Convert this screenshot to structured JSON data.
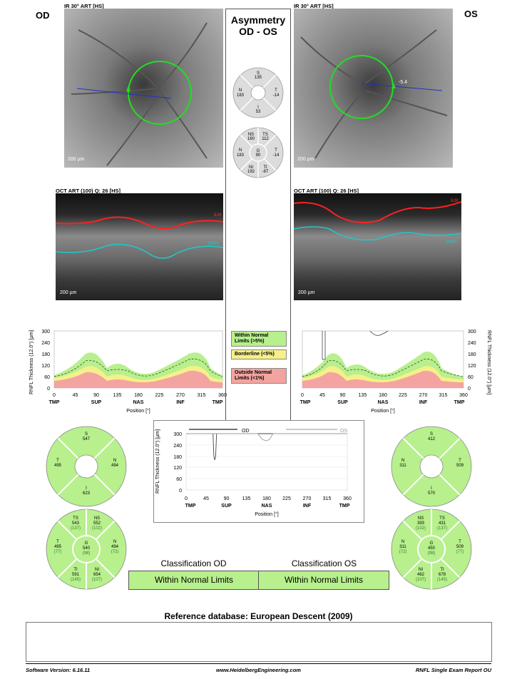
{
  "eyes": {
    "od": "OD",
    "os": "OS"
  },
  "images": {
    "od_ir_label": "IR 30° ART [HS]",
    "os_ir_label": "IR 30° ART [HS]",
    "od_oct_label": "OCT ART (100) Q: 26 [HS]",
    "os_oct_label": "OCT ART (100) Q: 26 [HS]",
    "ir_scale": "200 µm",
    "oct_scale": "200 µm",
    "ilm": "ILM",
    "rnfl": "RNFL",
    "os_angle": "-5.4"
  },
  "asymmetry": {
    "title_line1": "Asymmetry",
    "title_line2": "OD - OS",
    "quad": {
      "S": "S",
      "S_val": "135",
      "N": "N",
      "N_val": "183",
      "T": "T",
      "T_val": "-14",
      "I": "I",
      "I_val": "53"
    },
    "sect": {
      "NS": "NS",
      "NS_val": "160",
      "TS": "TS",
      "TS_val": "112",
      "N": "N",
      "N_val": "183",
      "G": "G",
      "G_val": "90",
      "T": "T",
      "T_val": "-14",
      "NI": "NI",
      "NI_val": "192",
      "TI": "TI",
      "TI_val": "-87"
    }
  },
  "legend": {
    "within": "Within Normal Limits (>5%)",
    "borderline": "Borderline (<5%)",
    "outside": "Outside Normal Limits (<1%)",
    "colors": {
      "within": "#b7f08c",
      "borderline": "#f6f08a",
      "outside": "#f3a4a0"
    }
  },
  "rnfl_chart": {
    "ylabel": "RNFL Thickness (12.0°) [µm]",
    "xlabel": "Position [°]",
    "yticks": [
      "300",
      "240",
      "180",
      "120",
      "60",
      "0"
    ],
    "xticks": [
      "0",
      "45",
      "90",
      "135",
      "180",
      "225",
      "270",
      "315",
      "360"
    ],
    "regions": [
      "TMP",
      "SUP",
      "NAS",
      "INF",
      "TMP"
    ]
  },
  "chart_data": {
    "type": "line",
    "title": "",
    "xlabel": "Position [°]",
    "ylabel": "RNFL Thickness (12.0°) [µm]",
    "xlim": [
      0,
      360
    ],
    "ylim": [
      0,
      300
    ],
    "series": [
      {
        "name": "OD",
        "x": [
          0,
          60,
          62,
          64,
          66,
          68,
          360
        ],
        "values": [
          300,
          300,
          180,
          160,
          180,
          300,
          300
        ]
      },
      {
        "name": "OS",
        "x": [
          0,
          160,
          170,
          178,
          186,
          194,
          360
        ],
        "values": [
          300,
          300,
          270,
          262,
          268,
          300,
          300
        ]
      }
    ]
  },
  "od_quadrants": {
    "S": "S",
    "S_val": "547",
    "T": "T",
    "T_val": "495",
    "N": "N",
    "N_val": "494",
    "I": "I",
    "I_val": "623"
  },
  "os_quadrants": {
    "S": "S",
    "S_val": "412",
    "N": "N",
    "N_val": "311",
    "T": "T",
    "T_val": "509",
    "I": "I",
    "I_val": "570"
  },
  "od_sectors": {
    "TS": "TS",
    "TS_val": "543",
    "TS_n": "(137)",
    "NS": "NS",
    "NS_val": "552",
    "NS_n": "(102)",
    "T": "T",
    "T_val": "495",
    "T_n": "(77)",
    "G": "G",
    "G_val": "540",
    "G_n": "(98)",
    "N": "N",
    "N_val": "494",
    "N_n": "(72)",
    "TI": "TI",
    "TI_val": "591",
    "TI_n": "(145)",
    "NI": "NI",
    "NI_val": "654",
    "NI_n": "(107)"
  },
  "os_sectors": {
    "NS": "NS",
    "NS_val": "393",
    "NS_n": "(102)",
    "TS": "TS",
    "TS_val": "431",
    "TS_n": "(137)",
    "N": "N",
    "N_val": "311",
    "N_n": "(72)",
    "G": "G",
    "G_val": "450",
    "G_n": "(98)",
    "T": "T",
    "T_val": "509",
    "T_n": "(77)",
    "NI": "NI",
    "NI_val": "462",
    "NI_n": "(107)",
    "TI": "TI",
    "TI_val": "678",
    "TI_n": "(145)"
  },
  "classification": {
    "od_title": "Classification OD",
    "os_title": "Classification OS",
    "od_value": "Within Normal Limits",
    "os_value": "Within Normal Limits"
  },
  "reference": "Reference database: European Descent (2009)",
  "footer": {
    "software": "Software Version: 6.16.11",
    "website": "www.HeidelbergEngineering.com",
    "report": "RNFL Single Exam Report OU"
  }
}
